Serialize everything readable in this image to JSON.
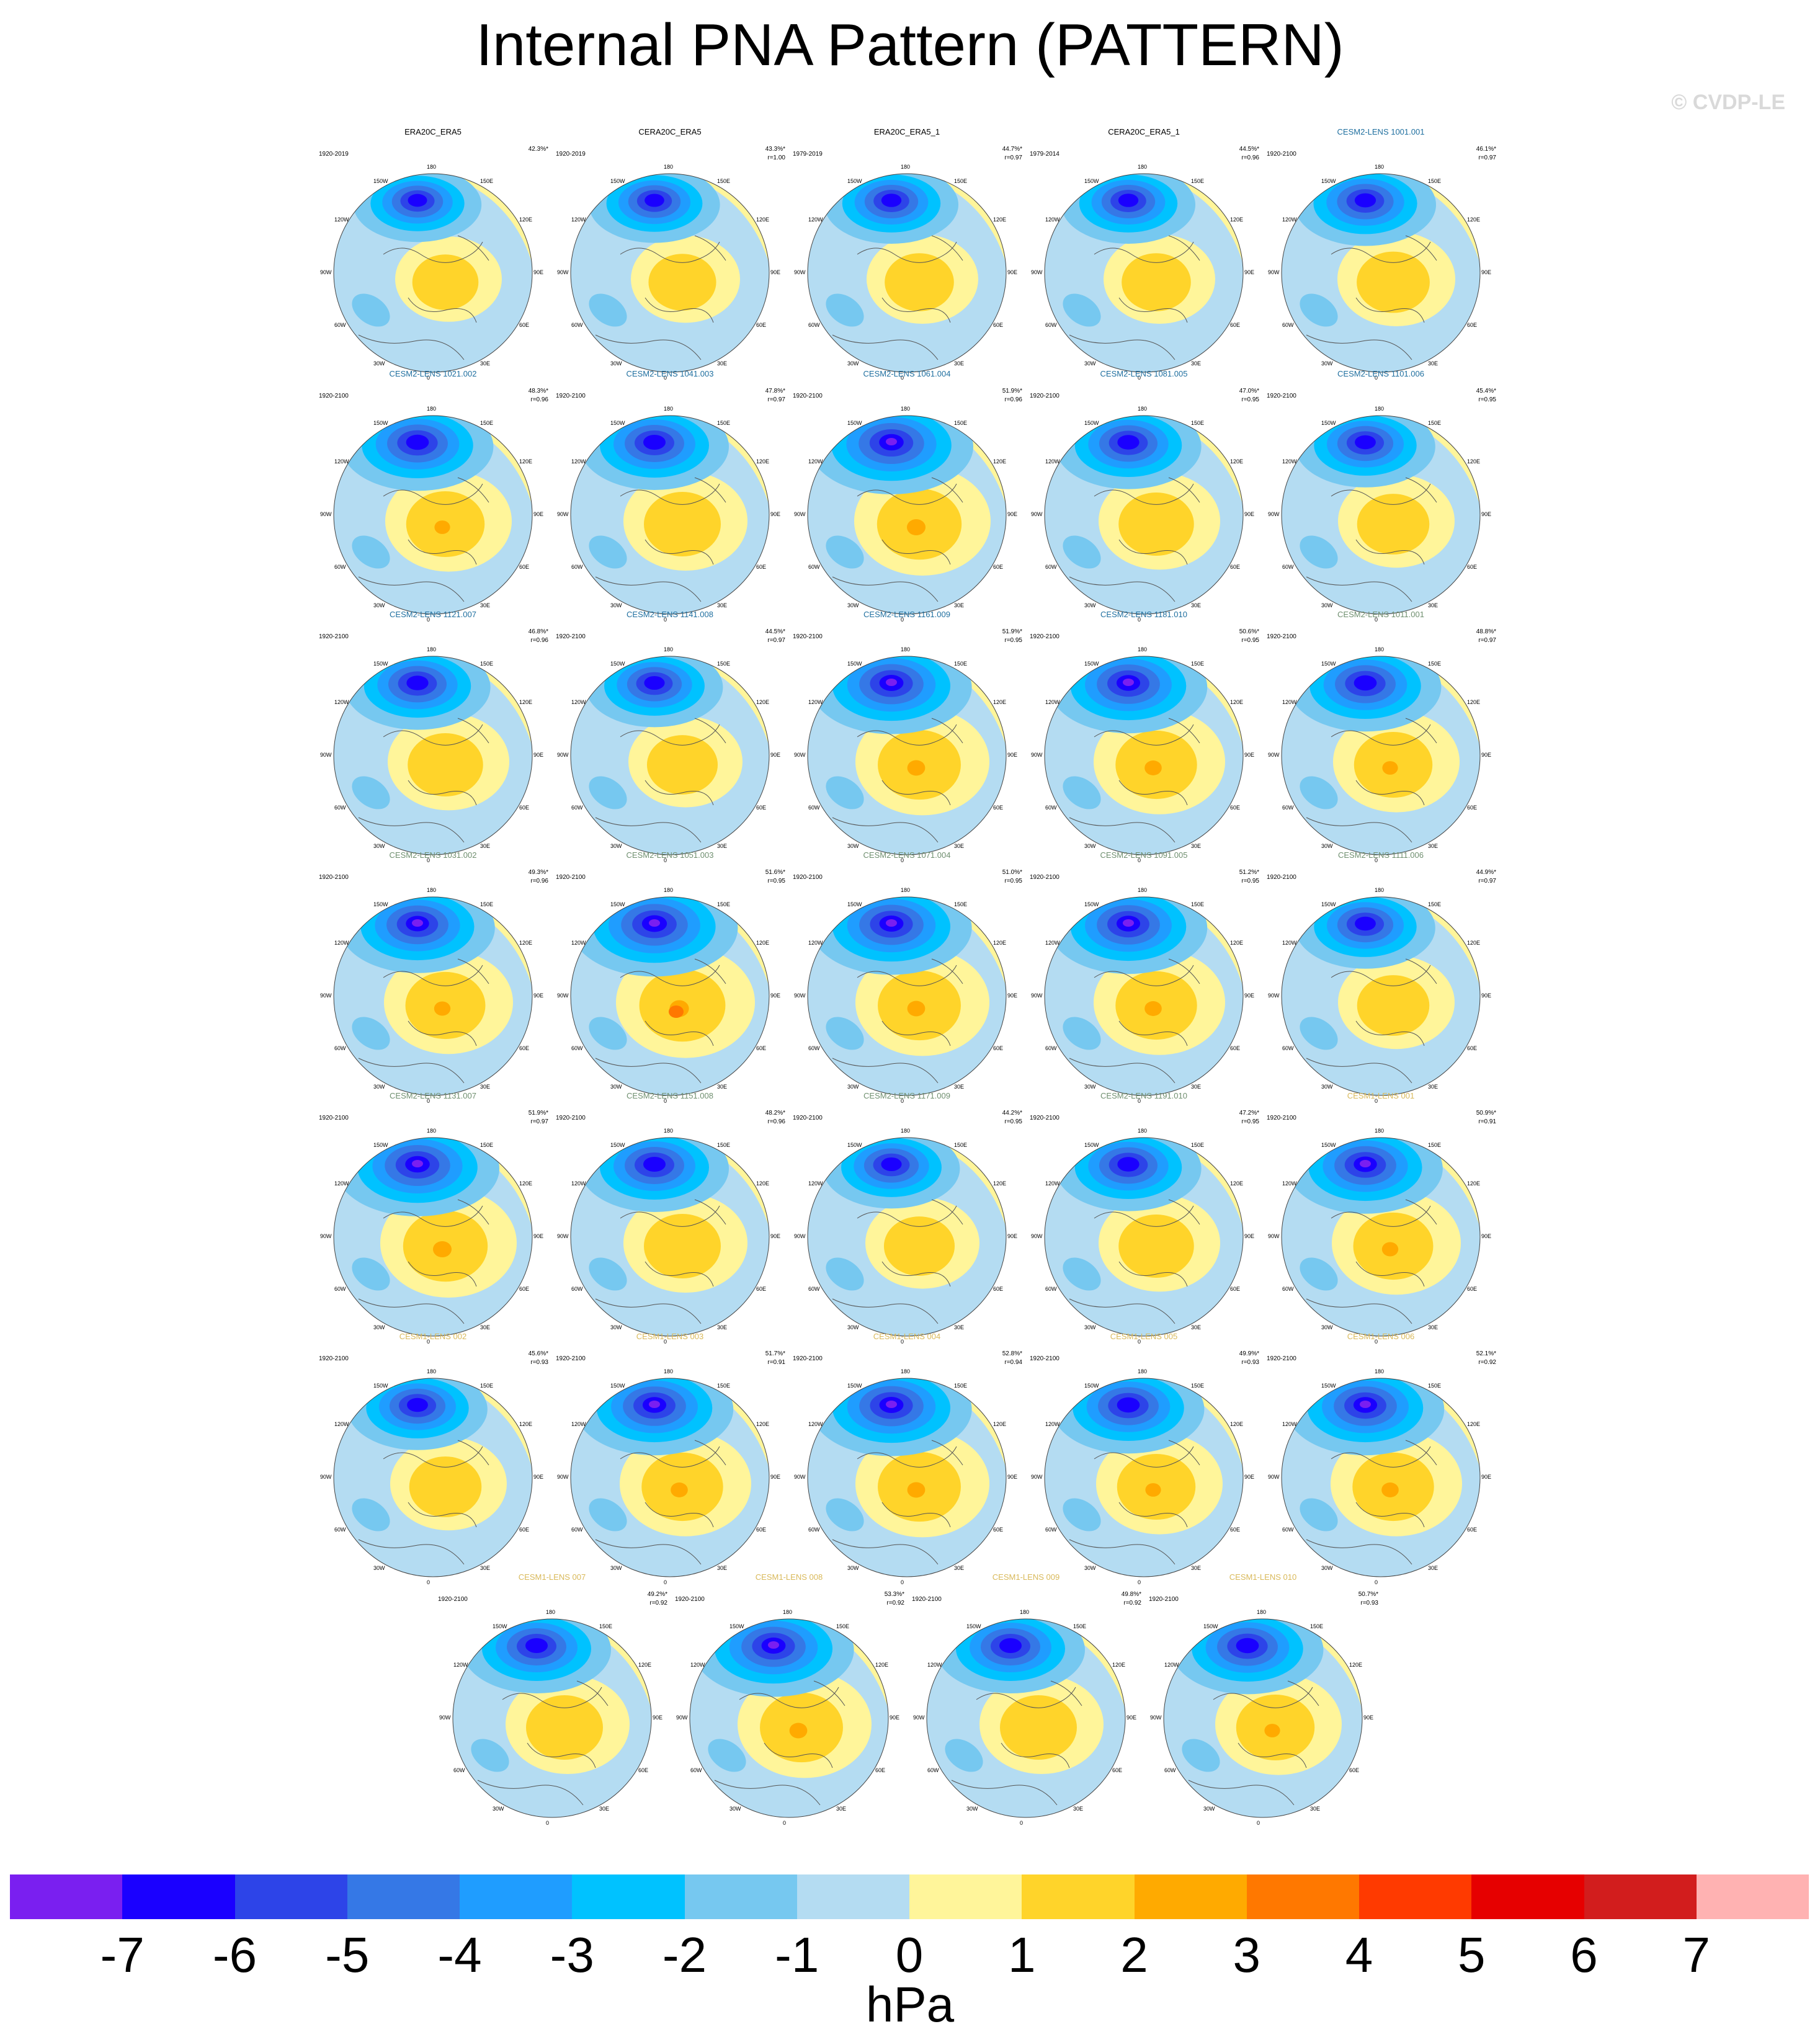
{
  "title": "Internal PNA Pattern (PATTERN)",
  "watermark": "© CVDP-LE",
  "lon_labels": [
    "180",
    "150E",
    "120E",
    "90E",
    "60E",
    "30E",
    "0",
    "30W",
    "60W",
    "90W",
    "120W",
    "150W"
  ],
  "panels": [
    {
      "name": "ERA20C_ERA5",
      "years": "1920-2019",
      "pct": "42.3%*",
      "r": "",
      "name_color": "#000000",
      "strength": 0.86
    },
    {
      "name": "CERA20C_ERA5",
      "years": "1920-2019",
      "pct": "43.3%*",
      "r": "r=1.00",
      "name_color": "#000000",
      "strength": 0.88
    },
    {
      "name": "ERA20C_ERA5_1",
      "years": "1979-2019",
      "pct": "44.7%*",
      "r": "r=0.97",
      "name_color": "#000000",
      "strength": 0.9
    },
    {
      "name": "CERA20C_ERA5_1",
      "years": "1979-2014",
      "pct": "44.5%*",
      "r": "r=0.96",
      "name_color": "#000000",
      "strength": 0.9
    },
    {
      "name": "CESM2-LENS 1001.001",
      "years": "1920-2100",
      "pct": "46.1%*",
      "r": "r=0.97",
      "name_color": "#1f6f9f",
      "strength": 0.95
    },
    {
      "name": "CESM2-LENS 1021.002",
      "years": "1920-2100",
      "pct": "48.3%*",
      "r": "r=0.96",
      "name_color": "#1f6f9f",
      "strength": 1.02
    },
    {
      "name": "CESM2-LENS 1041.003",
      "years": "1920-2100",
      "pct": "47.8%*",
      "r": "r=0.97",
      "name_color": "#1f6f9f",
      "strength": 1.0
    },
    {
      "name": "CESM2-LENS 1061.004",
      "years": "1920-2100",
      "pct": "51.9%*",
      "r": "r=0.96",
      "name_color": "#1f6f9f",
      "strength": 1.1
    },
    {
      "name": "CESM2-LENS 1081.005",
      "years": "1920-2100",
      "pct": "47.0%*",
      "r": "r=0.95",
      "name_color": "#1f6f9f",
      "strength": 0.98
    },
    {
      "name": "CESM2-LENS 1101.006",
      "years": "1920-2100",
      "pct": "45.4%*",
      "r": "r=0.95",
      "name_color": "#1f6f9f",
      "strength": 0.94
    },
    {
      "name": "CESM2-LENS 1121.007",
      "years": "1920-2100",
      "pct": "46.8%*",
      "r": "r=0.96",
      "name_color": "#1f6f9f",
      "strength": 0.98
    },
    {
      "name": "CESM2-LENS 1141.008",
      "years": "1920-2100",
      "pct": "44.5%*",
      "r": "r=0.97",
      "name_color": "#1f6f9f",
      "strength": 0.92
    },
    {
      "name": "CESM2-LENS 1161.009",
      "years": "1920-2100",
      "pct": "51.9%*",
      "r": "r=0.95",
      "name_color": "#1f6f9f",
      "strength": 1.08
    },
    {
      "name": "CESM2-LENS 1181.010",
      "years": "1920-2100",
      "pct": "50.6%*",
      "r": "r=0.95",
      "name_color": "#1f6f9f",
      "strength": 1.06
    },
    {
      "name": "CESM2-LENS 1011.001",
      "years": "1920-2100",
      "pct": "48.8%*",
      "r": "r=0.97",
      "name_color": "#6f8f6f",
      "strength": 1.02
    },
    {
      "name": "CESM2-LENS 1031.002",
      "years": "1920-2100",
      "pct": "49.3%*",
      "r": "r=0.96",
      "name_color": "#6f8f6f",
      "strength": 1.04
    },
    {
      "name": "CESM2-LENS 1051.003",
      "years": "1920-2100",
      "pct": "51.6%*",
      "r": "r=0.95",
      "name_color": "#6f8f6f",
      "strength": 1.12
    },
    {
      "name": "CESM2-LENS 1071.004",
      "years": "1920-2100",
      "pct": "51.0%*",
      "r": "r=0.95",
      "name_color": "#6f8f6f",
      "strength": 1.08
    },
    {
      "name": "CESM2-LENS 1091.005",
      "years": "1920-2100",
      "pct": "51.2%*",
      "r": "r=0.95",
      "name_color": "#6f8f6f",
      "strength": 1.06
    },
    {
      "name": "CESM2-LENS 1111.006",
      "years": "1920-2100",
      "pct": "44.9%*",
      "r": "r=0.97",
      "name_color": "#6f8f6f",
      "strength": 0.94
    },
    {
      "name": "CESM2-LENS 1131.007",
      "years": "1920-2100",
      "pct": "51.9%*",
      "r": "r=0.97",
      "name_color": "#6f8f6f",
      "strength": 1.1
    },
    {
      "name": "CESM2-LENS 1151.008",
      "years": "1920-2100",
      "pct": "48.2%*",
      "r": "r=0.96",
      "name_color": "#6f8f6f",
      "strength": 1.0
    },
    {
      "name": "CESM2-LENS 1171.009",
      "years": "1920-2100",
      "pct": "44.2%*",
      "r": "r=0.95",
      "name_color": "#6f8f6f",
      "strength": 0.92
    },
    {
      "name": "CESM2-LENS 1191.010",
      "years": "1920-2100",
      "pct": "47.2%*",
      "r": "r=0.95",
      "name_color": "#6f8f6f",
      "strength": 0.98
    },
    {
      "name": "CESM1-LENS 001",
      "years": "1920-2100",
      "pct": "50.9%*",
      "r": "r=0.91",
      "name_color": "#d9b95a",
      "strength": 1.04
    },
    {
      "name": "CESM1-LENS 002",
      "years": "1920-2100",
      "pct": "45.6%*",
      "r": "r=0.93",
      "name_color": "#d9b95a",
      "strength": 0.94
    },
    {
      "name": "CESM1-LENS 003",
      "years": "1920-2100",
      "pct": "51.7%*",
      "r": "r=0.91",
      "name_color": "#d9b95a",
      "strength": 1.06
    },
    {
      "name": "CESM1-LENS 004",
      "years": "1920-2100",
      "pct": "52.8%*",
      "r": "r=0.94",
      "name_color": "#d9b95a",
      "strength": 1.08
    },
    {
      "name": "CESM1-LENS 005",
      "years": "1920-2100",
      "pct": "49.9%*",
      "r": "r=0.93",
      "name_color": "#d9b95a",
      "strength": 1.02
    },
    {
      "name": "CESM1-LENS 006",
      "years": "1920-2100",
      "pct": "52.1%*",
      "r": "r=0.92",
      "name_color": "#d9b95a",
      "strength": 1.06
    },
    {
      "name": "CESM1-LENS 007",
      "years": "1920-2100",
      "pct": "49.2%*",
      "r": "r=0.92",
      "name_color": "#d9b95a",
      "strength": 1.0
    },
    {
      "name": "CESM1-LENS 008",
      "years": "1920-2100",
      "pct": "53.3%*",
      "r": "r=0.92",
      "name_color": "#d9b95a",
      "strength": 1.08
    },
    {
      "name": "CESM1-LENS 009",
      "years": "1920-2100",
      "pct": "49.8%*",
      "r": "r=0.92",
      "name_color": "#d9b95a",
      "strength": 1.0
    },
    {
      "name": "CESM1-LENS 010",
      "years": "1920-2100",
      "pct": "50.7%*",
      "r": "r=0.93",
      "name_color": "#d9b95a",
      "strength": 1.02
    }
  ],
  "colorbar": {
    "unit": "hPa",
    "colors": [
      "#7a1ff0",
      "#1a00ff",
      "#2d44e8",
      "#3578e6",
      "#1f9dff",
      "#00c2ff",
      "#76c8f0",
      "#b4dcf2",
      "#fff59a",
      "#ffd42a",
      "#ffaa00",
      "#ff7800",
      "#ff3a00",
      "#e60000",
      "#d21d1d",
      "#ffb2b2"
    ],
    "ticks": [
      "-7",
      "-6",
      "-5",
      "-4",
      "-3",
      "-2",
      "-1",
      "0",
      "1",
      "2",
      "3",
      "4",
      "5",
      "6",
      "7"
    ]
  }
}
